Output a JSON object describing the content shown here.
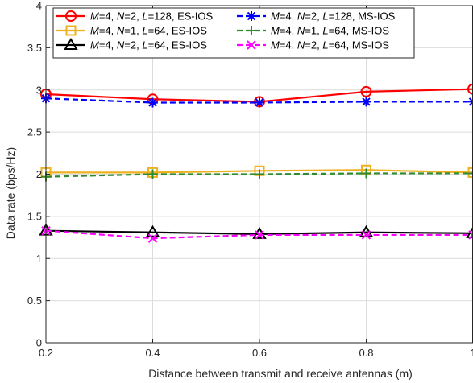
{
  "chart_data": {
    "type": "line",
    "xlabel": "Distance between transmit and receive antennas (m)",
    "ylabel": "Data rate (bps/Hz)",
    "xlim": [
      0.2,
      1.0
    ],
    "ylim": [
      0,
      4
    ],
    "x": [
      0.2,
      0.4,
      0.6,
      0.8,
      1.0
    ],
    "x_tick_labels": [
      "0.2",
      "0.4",
      "0.6",
      "0.8",
      "1"
    ],
    "y_ticks": [
      0,
      0.5,
      1,
      1.5,
      2,
      2.5,
      3,
      3.5,
      4
    ],
    "y_tick_labels": [
      "0",
      "0.5",
      "1",
      "1.5",
      "2",
      "2.5",
      "3",
      "3.5",
      "4"
    ],
    "grid": true,
    "legend_position": "top",
    "series": [
      {
        "legend": {
          "p1": "M",
          "p2": "=4, ",
          "p3": "N",
          "p4": "=2, ",
          "p5": "L",
          "p6": "=128, ES-IOS"
        },
        "color": "#ff0000",
        "dash": "solid",
        "marker": "circle",
        "values": [
          2.95,
          2.89,
          2.86,
          2.98,
          3.01
        ]
      },
      {
        "legend": {
          "p1": "M",
          "p2": "=4, ",
          "p3": "N",
          "p4": "=2, ",
          "p5": "L",
          "p6": "=128, MS-IOS"
        },
        "color": "#0000ff",
        "dash": "dashed",
        "marker": "asterisk",
        "values": [
          2.9,
          2.85,
          2.85,
          2.86,
          2.86
        ]
      },
      {
        "legend": {
          "p1": "M",
          "p2": "=4, ",
          "p3": "N",
          "p4": "=1, ",
          "p5": "L",
          "p6": "=64, ES-IOS"
        },
        "color": "#edb120",
        "dash": "solid",
        "marker": "square",
        "values": [
          2.02,
          2.02,
          2.04,
          2.05,
          2.02
        ]
      },
      {
        "legend": {
          "p1": "M",
          "p2": "=4, ",
          "p3": "N",
          "p4": "=1, ",
          "p5": "L",
          "p6": "=64, MS-IOS"
        },
        "color": "#2e8b2e",
        "dash": "dashed",
        "marker": "plus",
        "values": [
          1.97,
          2.0,
          2.0,
          2.01,
          2.01
        ]
      },
      {
        "legend": {
          "p1": "M",
          "p2": "=4, ",
          "p3": "N",
          "p4": "=2, ",
          "p5": "L",
          "p6": "=64, ES-IOS"
        },
        "color": "#000000",
        "dash": "solid",
        "marker": "triangle",
        "values": [
          1.33,
          1.31,
          1.29,
          1.31,
          1.3
        ]
      },
      {
        "legend": {
          "p1": "M",
          "p2": "=4, ",
          "p3": "N",
          "p4": "=2, ",
          "p5": "L",
          "p6": "=64, MS-IOS"
        },
        "color": "#ff00ff",
        "dash": "dashed",
        "marker": "x",
        "values": [
          1.33,
          1.24,
          1.28,
          1.28,
          1.28
        ]
      }
    ]
  }
}
